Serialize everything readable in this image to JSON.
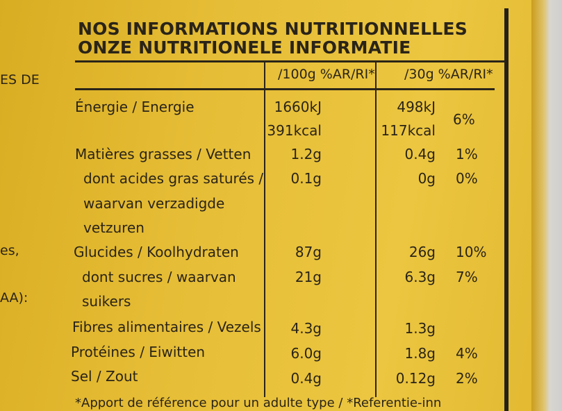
{
  "title": {
    "line1": "NOS INFORMATIONS NUTRITIONNELLES",
    "line2": "ONZE NUTRITIONELE INFORMATIE"
  },
  "left_fragments": [
    "ES DE",
    "es,",
    "AA):"
  ],
  "table": {
    "col_headers": [
      "/100g %AR/RI*",
      "/30g %AR/RI*"
    ],
    "rows": [
      {
        "label": "Énergie / Energie",
        "per100": "1660kJ",
        "per30": "498kJ",
        "pct": "6%"
      },
      {
        "label": "",
        "per100": "391kcal",
        "per30": "117kcal",
        "pct": ""
      },
      {
        "label": "Matières grasses / Vetten",
        "per100": "1.2g",
        "per30": "0.4g",
        "pct": "1%"
      },
      {
        "label": "dont acides gras saturés /",
        "per100": "0.1g",
        "per30": "0g",
        "pct": "0%"
      },
      {
        "label": "waarvan verzadigde",
        "per100": "",
        "per30": "",
        "pct": ""
      },
      {
        "label": "vetzuren",
        "per100": "",
        "per30": "",
        "pct": ""
      },
      {
        "label": "Glucides / Koolhydraten",
        "per100": "87g",
        "per30": "26g",
        "pct": "10%"
      },
      {
        "label": "dont sucres / waarvan",
        "per100": "21g",
        "per30": "6.3g",
        "pct": "7%"
      },
      {
        "label": "suikers",
        "per100": "",
        "per30": "",
        "pct": ""
      },
      {
        "label": "Fibres alimentaires / Vezels",
        "per100": "4.3g",
        "per30": "1.3g",
        "pct": ""
      },
      {
        "label": "Protéines / Eiwitten",
        "per100": "6.0g",
        "per30": "1.8g",
        "pct": "4%"
      },
      {
        "label": "Sel / Zout",
        "per100": "0.4g",
        "per30": "0.12g",
        "pct": "2%"
      }
    ]
  },
  "footnote": "*Apport de référence pour un adulte type / *Referentie-inn"
}
